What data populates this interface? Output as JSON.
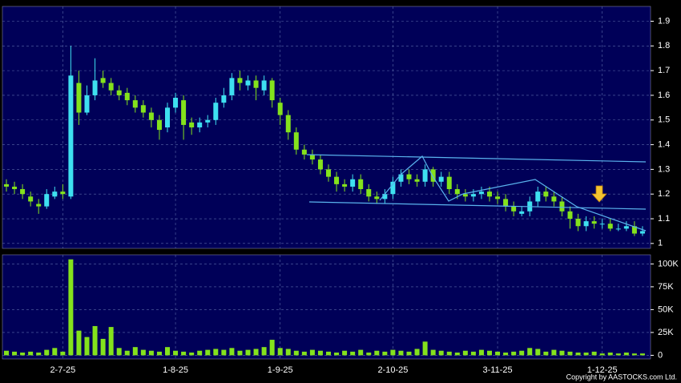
{
  "chart_data": {
    "type": "candlestick",
    "categories": [
      null,
      null,
      null,
      null,
      null,
      null,
      null,
      "2-7-25",
      null,
      null,
      null,
      null,
      null,
      null,
      null,
      null,
      null,
      null,
      null,
      null,
      null,
      "1-8-25",
      null,
      null,
      null,
      null,
      null,
      null,
      null,
      null,
      null,
      null,
      null,
      null,
      "1-9-25",
      null,
      null,
      null,
      null,
      null,
      null,
      null,
      null,
      null,
      null,
      null,
      null,
      null,
      "2-10-25",
      null,
      null,
      null,
      null,
      null,
      null,
      null,
      null,
      null,
      null,
      null,
      null,
      "3-11-25",
      null,
      null,
      null,
      null,
      null,
      null,
      null,
      null,
      null,
      null,
      null,
      null,
      "1-12-25",
      null,
      null,
      null,
      null,
      null
    ],
    "open": [
      1.24,
      1.23,
      1.22,
      1.19,
      1.16,
      1.15,
      1.19,
      1.21,
      1.19,
      1.65,
      1.53,
      1.6,
      1.67,
      1.65,
      1.62,
      1.61,
      1.58,
      1.56,
      1.53,
      1.5,
      1.47,
      1.55,
      1.58,
      1.49,
      1.47,
      1.49,
      1.5,
      1.57,
      1.6,
      1.67,
      1.64,
      1.66,
      1.62,
      1.66,
      1.57,
      1.52,
      1.45,
      1.38,
      1.36,
      1.34,
      1.3,
      1.27,
      1.24,
      1.23,
      1.26,
      1.22,
      1.19,
      1.18,
      1.2,
      1.25,
      1.28,
      1.26,
      1.25,
      1.3,
      1.25,
      1.27,
      1.22,
      1.2,
      1.19,
      1.2,
      1.21,
      1.19,
      1.18,
      1.15,
      1.12,
      1.13,
      1.17,
      1.21,
      1.19,
      1.17,
      1.13,
      1.1,
      1.07,
      1.09,
      1.08,
      1.08,
      1.06,
      1.06,
      1.07,
      1.04
    ],
    "high": [
      1.26,
      1.25,
      1.24,
      1.21,
      1.18,
      1.22,
      1.23,
      1.24,
      1.8,
      1.7,
      1.64,
      1.75,
      1.7,
      1.67,
      1.64,
      1.63,
      1.6,
      1.58,
      1.55,
      1.52,
      1.57,
      1.61,
      1.6,
      1.51,
      1.51,
      1.52,
      1.59,
      1.63,
      1.69,
      1.7,
      1.68,
      1.68,
      1.68,
      1.67,
      1.59,
      1.54,
      1.47,
      1.4,
      1.38,
      1.36,
      1.32,
      1.29,
      1.26,
      1.28,
      1.28,
      1.24,
      1.21,
      1.22,
      1.27,
      1.3,
      1.3,
      1.28,
      1.32,
      1.31,
      1.29,
      1.29,
      1.24,
      1.22,
      1.22,
      1.23,
      1.23,
      1.21,
      1.2,
      1.17,
      1.15,
      1.19,
      1.23,
      1.23,
      1.21,
      1.19,
      1.15,
      1.12,
      1.11,
      1.11,
      1.1,
      1.1,
      1.08,
      1.09,
      1.09,
      1.07
    ],
    "low": [
      1.21,
      1.2,
      1.18,
      1.15,
      1.12,
      1.14,
      1.18,
      1.18,
      1.18,
      1.48,
      1.52,
      1.58,
      1.63,
      1.6,
      1.58,
      1.56,
      1.53,
      1.51,
      1.47,
      1.42,
      1.45,
      1.53,
      1.42,
      1.44,
      1.45,
      1.47,
      1.48,
      1.55,
      1.58,
      1.62,
      1.62,
      1.58,
      1.6,
      1.55,
      1.48,
      1.42,
      1.36,
      1.34,
      1.32,
      1.28,
      1.25,
      1.21,
      1.21,
      1.21,
      1.2,
      1.17,
      1.16,
      1.16,
      1.18,
      1.23,
      1.24,
      1.23,
      1.23,
      1.23,
      1.23,
      1.2,
      1.18,
      1.17,
      1.17,
      1.18,
      1.17,
      1.16,
      1.13,
      1.11,
      1.11,
      1.11,
      1.15,
      1.17,
      1.15,
      1.11,
      1.06,
      1.05,
      1.05,
      1.06,
      1.06,
      1.05,
      1.05,
      1.05,
      1.03,
      1.03
    ],
    "close": [
      1.23,
      1.22,
      1.2,
      1.17,
      1.15,
      1.2,
      1.21,
      1.2,
      1.68,
      1.53,
      1.6,
      1.66,
      1.65,
      1.62,
      1.6,
      1.58,
      1.55,
      1.53,
      1.5,
      1.46,
      1.55,
      1.59,
      1.48,
      1.47,
      1.49,
      1.5,
      1.57,
      1.6,
      1.67,
      1.65,
      1.66,
      1.63,
      1.66,
      1.58,
      1.52,
      1.45,
      1.38,
      1.36,
      1.34,
      1.3,
      1.27,
      1.24,
      1.23,
      1.26,
      1.22,
      1.19,
      1.18,
      1.2,
      1.25,
      1.28,
      1.26,
      1.25,
      1.3,
      1.25,
      1.27,
      1.22,
      1.2,
      1.19,
      1.2,
      1.21,
      1.19,
      1.18,
      1.15,
      1.13,
      1.13,
      1.17,
      1.21,
      1.19,
      1.17,
      1.13,
      1.1,
      1.07,
      1.09,
      1.08,
      1.08,
      1.06,
      1.06,
      1.07,
      1.04,
      1.05
    ],
    "volume": [
      5000,
      4000,
      3000,
      4000,
      3000,
      6000,
      8000,
      4000,
      105000,
      27000,
      20000,
      32000,
      18000,
      31000,
      8000,
      5000,
      9000,
      6000,
      5000,
      4000,
      9000,
      5000,
      4000,
      3000,
      5000,
      6000,
      7000,
      6000,
      8000,
      5000,
      6000,
      7000,
      9000,
      17000,
      8000,
      7000,
      5000,
      4000,
      6000,
      5000,
      4000,
      3000,
      5000,
      4000,
      6000,
      3000,
      5000,
      4000,
      6000,
      5000,
      4000,
      7000,
      15000,
      6000,
      5000,
      4000,
      3000,
      5000,
      4000,
      6000,
      5000,
      4000,
      3000,
      4000,
      5000,
      8000,
      7000,
      4000,
      6000,
      5000,
      4000,
      3000,
      3000,
      4000,
      2000,
      3000,
      2000,
      3000,
      2000,
      2000
    ],
    "ylim": [
      0.98,
      1.96
    ],
    "yticks": [
      1,
      1.1,
      1.2,
      1.3,
      1.4,
      1.5,
      1.6,
      1.7,
      1.8,
      1.9
    ],
    "volume_ylim": [
      -4000,
      110000
    ],
    "volume_yticks": [
      {
        "value": 0,
        "label": "0"
      },
      {
        "value": 25000,
        "label": "25K"
      },
      {
        "value": 50000,
        "label": "50K"
      },
      {
        "value": 75000,
        "label": "75K"
      },
      {
        "value": 100000,
        "label": "100K"
      }
    ],
    "up_color": "#3ee0f0",
    "down_color": "#84e21c",
    "volume_color": "#84e21c",
    "grid": true
  },
  "footer": "Copyright by AASTOCKS.com Ltd."
}
